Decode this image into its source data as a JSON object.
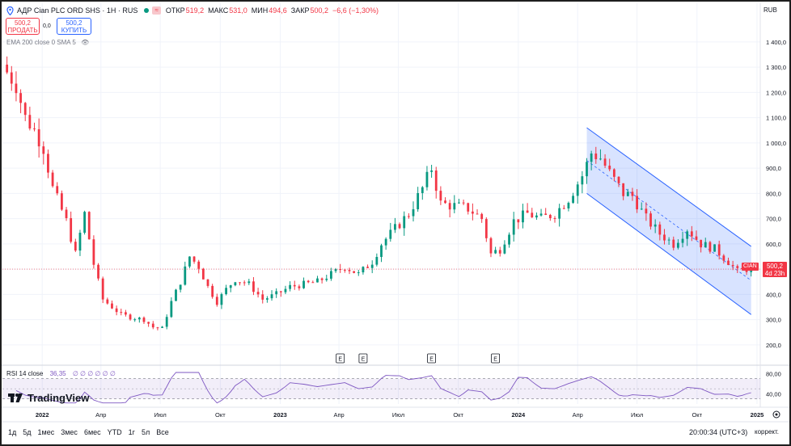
{
  "header": {
    "title": "АДР Cian PLC ORD SHS · 1H · RUS",
    "badge": "≈",
    "open_label": "ОТКР",
    "open": "519,2",
    "high_label": "МАКС",
    "high": "531,0",
    "low_label": "МИН",
    "low": "494,6",
    "close_label": "ЗАКР",
    "close": "500,2",
    "change": "−6,6 (−1,30%)"
  },
  "trade": {
    "sell_price": "500,2",
    "sell_label": "ПРОДАТЬ",
    "spread": "0,0",
    "buy_price": "500,2",
    "buy_label": "КУПИТЬ"
  },
  "indicators_label": "EMA 200 close 0 SMA 5",
  "currency": "RUB",
  "price_tag": {
    "symbol": "CIAN",
    "price": "500,2",
    "countdown": "4d 23h"
  },
  "rsi": {
    "label": "RSI 14 close",
    "value": "36,35",
    "extra": "∅ ∅ ∅ ∅ ∅ ∅"
  },
  "brand": "TradingView",
  "footer": {
    "periods": [
      "1д",
      "5д",
      "1мес",
      "3мес",
      "6мес",
      "YTD",
      "1г",
      "5л",
      "Все"
    ],
    "clock": "20:00:34 (UTC+3)",
    "adjust": "коррект."
  },
  "colors": {
    "up": "#089981",
    "down": "#f23645",
    "channel": "#2962ff",
    "rsi": "#7e57c2"
  },
  "chart_data": {
    "type": "candlestick",
    "title": "АДР Cian PLC ORD SHS · 1H · RUS",
    "y_ticks": [
      1400,
      1300,
      1200,
      1100,
      1000,
      900,
      800,
      700,
      600,
      500,
      400,
      300,
      200
    ],
    "y_tick_labels": [
      "1 400,0",
      "1 300,0",
      "1 200,0",
      "1 100,0",
      "1 000,0",
      "900,0",
      "800,0",
      "700,0",
      "600,0",
      "500,0",
      "400,0",
      "300,0",
      "200,0"
    ],
    "ylim": [
      145,
      1470
    ],
    "x_range": [
      "2021-11-01",
      "2025-01-06"
    ],
    "x_ticks": [
      {
        "date": "2022-01-01",
        "label": "2022",
        "bold": true
      },
      {
        "date": "2022-04-01",
        "label": "Апр"
      },
      {
        "date": "2022-07-01",
        "label": "Июл"
      },
      {
        "date": "2022-10-01",
        "label": "Окт"
      },
      {
        "date": "2023-01-01",
        "label": "2023",
        "bold": true
      },
      {
        "date": "2023-04-01",
        "label": "Апр"
      },
      {
        "date": "2023-07-01",
        "label": "Июл"
      },
      {
        "date": "2023-10-01",
        "label": "Окт"
      },
      {
        "date": "2024-01-01",
        "label": "2024",
        "bold": true
      },
      {
        "date": "2024-04-01",
        "label": "Апр"
      },
      {
        "date": "2024-07-01",
        "label": "Июл"
      },
      {
        "date": "2024-10-01",
        "label": "Окт"
      },
      {
        "date": "2025-01-01",
        "label": "2025",
        "bold": true
      }
    ],
    "last_price": 500.2,
    "price_path": [
      [
        "2021-11-08",
        1280
      ],
      [
        "2021-11-22",
        1230
      ],
      [
        "2021-12-06",
        1100
      ],
      [
        "2021-12-20",
        1050
      ],
      [
        "2022-01-03",
        980
      ],
      [
        "2022-01-17",
        820
      ],
      [
        "2022-02-07",
        690
      ],
      [
        "2022-02-21",
        560
      ],
      [
        "2022-03-07",
        720
      ],
      [
        "2022-03-21",
        520
      ],
      [
        "2022-04-04",
        380
      ],
      [
        "2022-04-18",
        350
      ],
      [
        "2022-05-02",
        320
      ],
      [
        "2022-05-16",
        310
      ],
      [
        "2022-06-06",
        300
      ],
      [
        "2022-06-20",
        270
      ],
      [
        "2022-07-04",
        265
      ],
      [
        "2022-07-18",
        370
      ],
      [
        "2022-08-01",
        450
      ],
      [
        "2022-08-15",
        550
      ],
      [
        "2022-08-29",
        510
      ],
      [
        "2022-09-12",
        430
      ],
      [
        "2022-09-26",
        370
      ],
      [
        "2022-10-10",
        420
      ],
      [
        "2022-10-24",
        460
      ],
      [
        "2022-11-14",
        440
      ],
      [
        "2022-12-05",
        380
      ],
      [
        "2022-12-26",
        400
      ],
      [
        "2023-01-16",
        430
      ],
      [
        "2023-02-06",
        440
      ],
      [
        "2023-02-27",
        450
      ],
      [
        "2023-03-20",
        480
      ],
      [
        "2023-04-10",
        510
      ],
      [
        "2023-05-01",
        480
      ],
      [
        "2023-05-22",
        530
      ],
      [
        "2023-06-05",
        600
      ],
      [
        "2023-06-26",
        660
      ],
      [
        "2023-07-17",
        720
      ],
      [
        "2023-08-07",
        820
      ],
      [
        "2023-08-21",
        900
      ],
      [
        "2023-09-04",
        760
      ],
      [
        "2023-09-25",
        750
      ],
      [
        "2023-10-16",
        740
      ],
      [
        "2023-11-06",
        700
      ],
      [
        "2023-11-20",
        560
      ],
      [
        "2023-12-04",
        580
      ],
      [
        "2023-12-25",
        690
      ],
      [
        "2024-01-15",
        720
      ],
      [
        "2024-02-05",
        700
      ],
      [
        "2024-02-26",
        720
      ],
      [
        "2024-03-18",
        780
      ],
      [
        "2024-04-08",
        870
      ],
      [
        "2024-04-22",
        960
      ],
      [
        "2024-05-06",
        940
      ],
      [
        "2024-05-20",
        880
      ],
      [
        "2024-06-10",
        800
      ],
      [
        "2024-06-24",
        790
      ],
      [
        "2024-07-15",
        700
      ],
      [
        "2024-08-05",
        640
      ],
      [
        "2024-08-26",
        600
      ],
      [
        "2024-09-16",
        660
      ],
      [
        "2024-10-07",
        600
      ],
      [
        "2024-10-28",
        580
      ],
      [
        "2024-11-18",
        530
      ],
      [
        "2024-12-02",
        490
      ],
      [
        "2024-12-16",
        500
      ]
    ],
    "channel": {
      "upper": [
        [
          "2024-04-15",
          1060
        ],
        [
          "2024-12-23",
          590
        ]
      ],
      "lower": [
        [
          "2024-04-15",
          800
        ],
        [
          "2024-12-23",
          320
        ]
      ]
    },
    "earnings_markers": [
      {
        "date": "2023-04-03",
        "label": "E"
      },
      {
        "date": "2023-05-08",
        "label": "E"
      },
      {
        "date": "2023-08-21",
        "label": "E"
      },
      {
        "date": "2023-11-27",
        "label": "E"
      }
    ],
    "rsi_ticks": [
      80,
      40
    ],
    "rsi_tick_labels": [
      "80,00",
      "40,00"
    ],
    "rsi_band": [
      30,
      70
    ],
    "rsi_last": 36.35
  }
}
